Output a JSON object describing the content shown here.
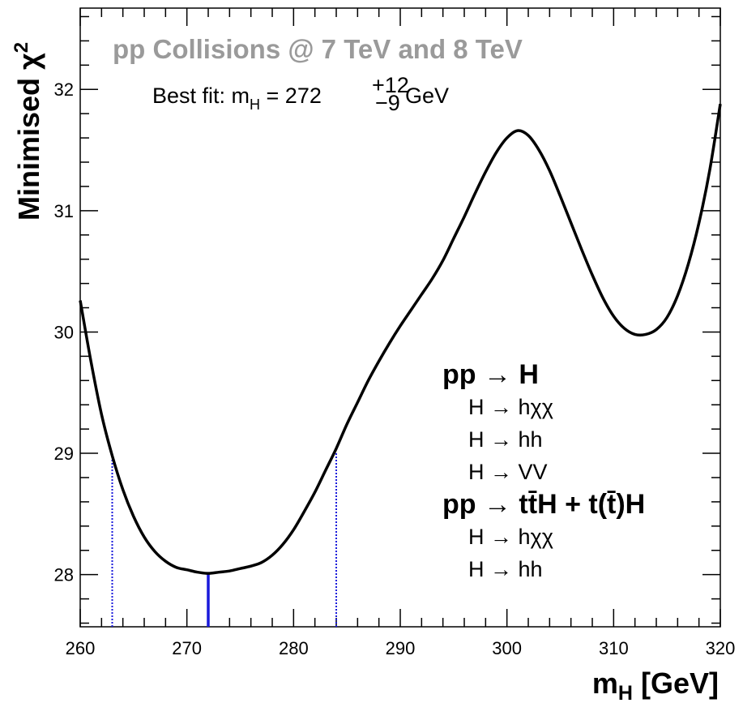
{
  "chart_data": {
    "type": "line",
    "title": "pp Collisions @ 7 TeV and 8 TeV",
    "xlabel": "m_H [GeV]",
    "ylabel": "Minimised χ²",
    "xlim": [
      260,
      320
    ],
    "ylim": [
      27.57,
      32.67
    ],
    "x_ticks": [
      260,
      270,
      280,
      290,
      300,
      310,
      320
    ],
    "y_ticks": [
      28,
      29,
      30,
      31,
      32
    ],
    "best_fit": {
      "prefix": "Best fit: m",
      "sub": "H",
      "mid": " = 272 ",
      "plus": "+12",
      "minus": "−9",
      "suffix": " GeV",
      "value": 272,
      "low": 263,
      "high": 284,
      "chi2_min": 28.01,
      "chi2_band": 29.0
    },
    "legend": [
      {
        "kind": "head",
        "text": "pp  → H"
      },
      {
        "kind": "item",
        "text": "H → hχχ"
      },
      {
        "kind": "item",
        "text": "H → hh"
      },
      {
        "kind": "item",
        "text": "H → VV"
      },
      {
        "kind": "head",
        "text": "pp  → tt̄H + t(t̄)H"
      },
      {
        "kind": "item",
        "text": "H → hχχ"
      },
      {
        "kind": "item",
        "text": "H → hh"
      }
    ],
    "series": [
      {
        "values": [
          [
            260,
            30.26
          ],
          [
            261,
            29.76
          ],
          [
            262,
            29.32
          ],
          [
            263,
            28.98
          ],
          [
            264,
            28.7
          ],
          [
            265,
            28.48
          ],
          [
            266,
            28.31
          ],
          [
            267,
            28.19
          ],
          [
            268,
            28.11
          ],
          [
            269,
            28.06
          ],
          [
            270,
            28.04
          ],
          [
            271,
            28.02
          ],
          [
            272,
            28.01
          ],
          [
            273,
            28.02
          ],
          [
            274,
            28.03
          ],
          [
            275,
            28.05
          ],
          [
            276,
            28.07
          ],
          [
            277,
            28.1
          ],
          [
            278,
            28.16
          ],
          [
            279,
            28.25
          ],
          [
            280,
            28.37
          ],
          [
            281,
            28.52
          ],
          [
            282,
            28.68
          ],
          [
            283,
            28.86
          ],
          [
            284,
            29.04
          ],
          [
            285,
            29.24
          ],
          [
            286,
            29.42
          ],
          [
            287,
            29.6
          ],
          [
            288,
            29.76
          ],
          [
            289,
            29.91
          ],
          [
            290,
            30.05
          ],
          [
            291,
            30.18
          ],
          [
            292,
            30.31
          ],
          [
            293,
            30.44
          ],
          [
            294,
            30.59
          ],
          [
            295,
            30.77
          ],
          [
            296,
            30.95
          ],
          [
            297,
            31.14
          ],
          [
            298,
            31.32
          ],
          [
            299,
            31.48
          ],
          [
            300,
            31.6
          ],
          [
            301,
            31.66
          ],
          [
            302,
            31.62
          ],
          [
            303,
            31.5
          ],
          [
            304,
            31.33
          ],
          [
            305,
            31.12
          ],
          [
            306,
            30.9
          ],
          [
            307,
            30.68
          ],
          [
            308,
            30.47
          ],
          [
            309,
            30.28
          ],
          [
            310,
            30.13
          ],
          [
            311,
            30.03
          ],
          [
            312,
            29.98
          ],
          [
            313,
            29.98
          ],
          [
            314,
            30.02
          ],
          [
            315,
            30.12
          ],
          [
            316,
            30.3
          ],
          [
            317,
            30.56
          ],
          [
            318,
            30.9
          ],
          [
            319,
            31.33
          ],
          [
            320,
            31.88
          ]
        ]
      }
    ]
  }
}
